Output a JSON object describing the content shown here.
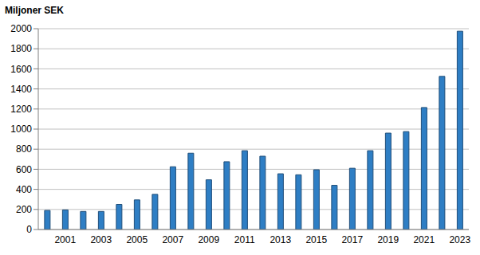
{
  "chart_data": {
    "type": "bar",
    "title": "Miljoner SEK",
    "categories": [
      null,
      "2001",
      null,
      "2003",
      null,
      "2005",
      null,
      "2007",
      null,
      "2009",
      null,
      "2011",
      null,
      "2013",
      null,
      "2015",
      null,
      "2017",
      null,
      "2019",
      null,
      "2021",
      null,
      "2023"
    ],
    "values": [
      190,
      195,
      180,
      180,
      250,
      295,
      350,
      625,
      760,
      495,
      675,
      785,
      730,
      555,
      545,
      595,
      440,
      610,
      785,
      960,
      975,
      1215,
      1525,
      1975
    ],
    "color": "#2e7ec4",
    "ylim": [
      0,
      2000
    ],
    "yticks": [
      0,
      200,
      400,
      600,
      800,
      1000,
      1200,
      1400,
      1600,
      1800,
      2000
    ],
    "grid": true
  }
}
